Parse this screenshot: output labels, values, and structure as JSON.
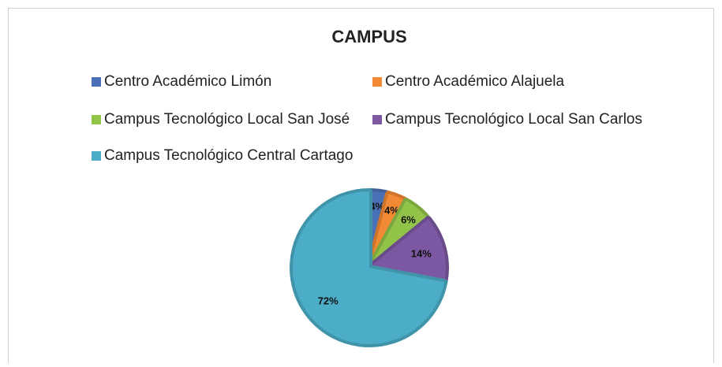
{
  "chart_data": {
    "type": "pie",
    "title": "CAMPUS",
    "categories": [
      "Centro Académico Limón",
      "Centro Académico Alajuela",
      "Campus Tecnológico Local San José",
      "Campus Tecnológico Local San Carlos",
      "Campus Tecnológico Central Cartago"
    ],
    "values": [
      4,
      4,
      6,
      14,
      72
    ],
    "value_labels": [
      "4%",
      "4%",
      "6%",
      "14%",
      "72%"
    ],
    "colors": [
      "#4a71b5",
      "#f28a35",
      "#92c449",
      "#7d58a2",
      "#4badc7"
    ],
    "legend": "top"
  }
}
